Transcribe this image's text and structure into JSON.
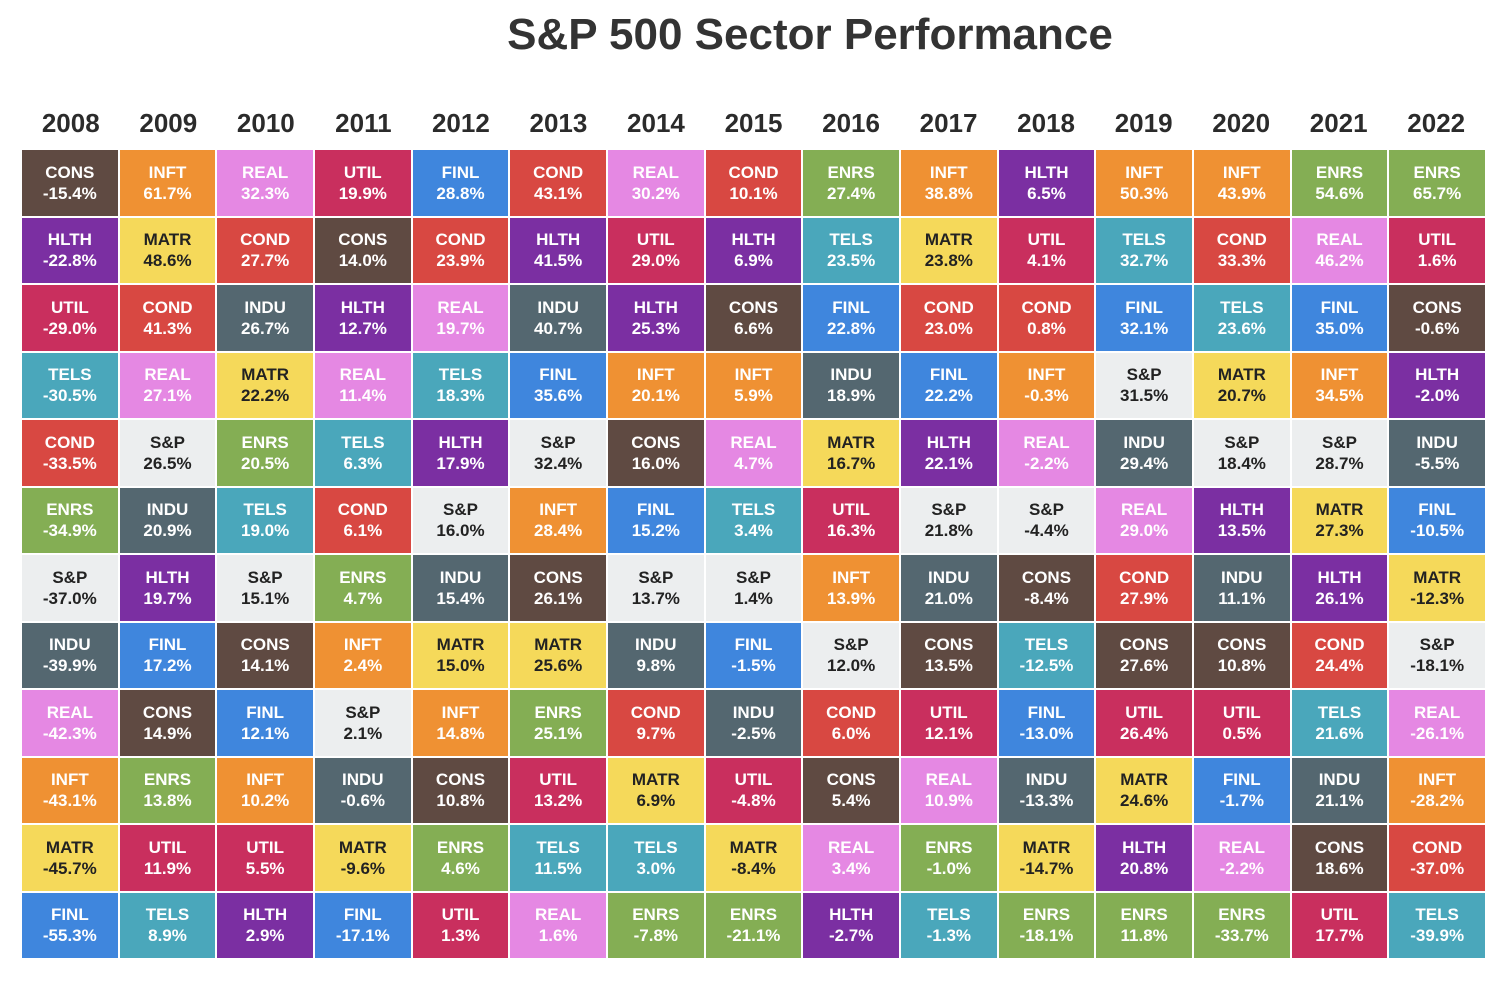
{
  "title": "S&P 500 Sector Performance",
  "colors": {
    "CONS": "#5f4a42",
    "INFT": "#ef9133",
    "REAL": "#e588e3",
    "UTIL": "#c92f5e",
    "FINL": "#3f86dd",
    "COND": "#d84842",
    "ENRS": "#84ae54",
    "HLTH": "#7b2fa2",
    "MATR": "#f5d95a",
    "INDU": "#546770",
    "TELS": "#4aa7bb",
    "S&P": "#eceeef"
  },
  "chart_data": {
    "type": "table",
    "title": "S&P 500 Sector Performance",
    "years": [
      "2008",
      "2009",
      "2010",
      "2011",
      "2012",
      "2013",
      "2014",
      "2015",
      "2016",
      "2017",
      "2018",
      "2019",
      "2020",
      "2021",
      "2022"
    ],
    "columns": [
      [
        [
          "CONS",
          "-15.4%"
        ],
        [
          "HLTH",
          "-22.8%"
        ],
        [
          "UTIL",
          "-29.0%"
        ],
        [
          "TELS",
          "-30.5%"
        ],
        [
          "COND",
          "-33.5%"
        ],
        [
          "ENRS",
          "-34.9%"
        ],
        [
          "S&P",
          "-37.0%"
        ],
        [
          "INDU",
          "-39.9%"
        ],
        [
          "REAL",
          "-42.3%"
        ],
        [
          "INFT",
          "-43.1%"
        ],
        [
          "MATR",
          "-45.7%"
        ],
        [
          "FINL",
          "-55.3%"
        ]
      ],
      [
        [
          "INFT",
          "61.7%"
        ],
        [
          "MATR",
          "48.6%"
        ],
        [
          "COND",
          "41.3%"
        ],
        [
          "REAL",
          "27.1%"
        ],
        [
          "S&P",
          "26.5%"
        ],
        [
          "INDU",
          "20.9%"
        ],
        [
          "HLTH",
          "19.7%"
        ],
        [
          "FINL",
          "17.2%"
        ],
        [
          "CONS",
          "14.9%"
        ],
        [
          "ENRS",
          "13.8%"
        ],
        [
          "UTIL",
          "11.9%"
        ],
        [
          "TELS",
          "8.9%"
        ]
      ],
      [
        [
          "REAL",
          "32.3%"
        ],
        [
          "COND",
          "27.7%"
        ],
        [
          "INDU",
          "26.7%"
        ],
        [
          "MATR",
          "22.2%"
        ],
        [
          "ENRS",
          "20.5%"
        ],
        [
          "TELS",
          "19.0%"
        ],
        [
          "S&P",
          "15.1%"
        ],
        [
          "CONS",
          "14.1%"
        ],
        [
          "FINL",
          "12.1%"
        ],
        [
          "INFT",
          "10.2%"
        ],
        [
          "UTIL",
          "5.5%"
        ],
        [
          "HLTH",
          "2.9%"
        ]
      ],
      [
        [
          "UTIL",
          "19.9%"
        ],
        [
          "CONS",
          "14.0%"
        ],
        [
          "HLTH",
          "12.7%"
        ],
        [
          "REAL",
          "11.4%"
        ],
        [
          "TELS",
          "6.3%"
        ],
        [
          "COND",
          "6.1%"
        ],
        [
          "ENRS",
          "4.7%"
        ],
        [
          "INFT",
          "2.4%"
        ],
        [
          "S&P",
          "2.1%"
        ],
        [
          "INDU",
          "-0.6%"
        ],
        [
          "MATR",
          "-9.6%"
        ],
        [
          "FINL",
          "-17.1%"
        ]
      ],
      [
        [
          "FINL",
          "28.8%"
        ],
        [
          "COND",
          "23.9%"
        ],
        [
          "REAL",
          "19.7%"
        ],
        [
          "TELS",
          "18.3%"
        ],
        [
          "HLTH",
          "17.9%"
        ],
        [
          "S&P",
          "16.0%"
        ],
        [
          "INDU",
          "15.4%"
        ],
        [
          "MATR",
          "15.0%"
        ],
        [
          "INFT",
          "14.8%"
        ],
        [
          "CONS",
          "10.8%"
        ],
        [
          "ENRS",
          "4.6%"
        ],
        [
          "UTIL",
          "1.3%"
        ]
      ],
      [
        [
          "COND",
          "43.1%"
        ],
        [
          "HLTH",
          "41.5%"
        ],
        [
          "INDU",
          "40.7%"
        ],
        [
          "FINL",
          "35.6%"
        ],
        [
          "S&P",
          "32.4%"
        ],
        [
          "INFT",
          "28.4%"
        ],
        [
          "CONS",
          "26.1%"
        ],
        [
          "MATR",
          "25.6%"
        ],
        [
          "ENRS",
          "25.1%"
        ],
        [
          "UTIL",
          "13.2%"
        ],
        [
          "TELS",
          "11.5%"
        ],
        [
          "REAL",
          "1.6%"
        ]
      ],
      [
        [
          "REAL",
          "30.2%"
        ],
        [
          "UTIL",
          "29.0%"
        ],
        [
          "HLTH",
          "25.3%"
        ],
        [
          "INFT",
          "20.1%"
        ],
        [
          "CONS",
          "16.0%"
        ],
        [
          "FINL",
          "15.2%"
        ],
        [
          "S&P",
          "13.7%"
        ],
        [
          "INDU",
          "9.8%"
        ],
        [
          "COND",
          "9.7%"
        ],
        [
          "MATR",
          "6.9%"
        ],
        [
          "TELS",
          "3.0%"
        ],
        [
          "ENRS",
          "-7.8%"
        ]
      ],
      [
        [
          "COND",
          "10.1%"
        ],
        [
          "HLTH",
          "6.9%"
        ],
        [
          "CONS",
          "6.6%"
        ],
        [
          "INFT",
          "5.9%"
        ],
        [
          "REAL",
          "4.7%"
        ],
        [
          "TELS",
          "3.4%"
        ],
        [
          "S&P",
          "1.4%"
        ],
        [
          "FINL",
          "-1.5%"
        ],
        [
          "INDU",
          "-2.5%"
        ],
        [
          "UTIL",
          "-4.8%"
        ],
        [
          "MATR",
          "-8.4%"
        ],
        [
          "ENRS",
          "-21.1%"
        ]
      ],
      [
        [
          "ENRS",
          "27.4%"
        ],
        [
          "TELS",
          "23.5%"
        ],
        [
          "FINL",
          "22.8%"
        ],
        [
          "INDU",
          "18.9%"
        ],
        [
          "MATR",
          "16.7%"
        ],
        [
          "UTIL",
          "16.3%"
        ],
        [
          "INFT",
          "13.9%"
        ],
        [
          "S&P",
          "12.0%"
        ],
        [
          "COND",
          "6.0%"
        ],
        [
          "CONS",
          "5.4%"
        ],
        [
          "REAL",
          "3.4%"
        ],
        [
          "HLTH",
          "-2.7%"
        ]
      ],
      [
        [
          "INFT",
          "38.8%"
        ],
        [
          "MATR",
          "23.8%"
        ],
        [
          "COND",
          "23.0%"
        ],
        [
          "FINL",
          "22.2%"
        ],
        [
          "HLTH",
          "22.1%"
        ],
        [
          "S&P",
          "21.8%"
        ],
        [
          "INDU",
          "21.0%"
        ],
        [
          "CONS",
          "13.5%"
        ],
        [
          "UTIL",
          "12.1%"
        ],
        [
          "REAL",
          "10.9%"
        ],
        [
          "ENRS",
          "-1.0%"
        ],
        [
          "TELS",
          "-1.3%"
        ]
      ],
      [
        [
          "HLTH",
          "6.5%"
        ],
        [
          "UTIL",
          "4.1%"
        ],
        [
          "COND",
          "0.8%"
        ],
        [
          "INFT",
          "-0.3%"
        ],
        [
          "REAL",
          "-2.2%"
        ],
        [
          "S&P",
          "-4.4%"
        ],
        [
          "CONS",
          "-8.4%"
        ],
        [
          "TELS",
          "-12.5%"
        ],
        [
          "FINL",
          "-13.0%"
        ],
        [
          "INDU",
          "-13.3%"
        ],
        [
          "MATR",
          "-14.7%"
        ],
        [
          "ENRS",
          "-18.1%"
        ]
      ],
      [
        [
          "INFT",
          "50.3%"
        ],
        [
          "TELS",
          "32.7%"
        ],
        [
          "FINL",
          "32.1%"
        ],
        [
          "S&P",
          "31.5%"
        ],
        [
          "INDU",
          "29.4%"
        ],
        [
          "REAL",
          "29.0%"
        ],
        [
          "COND",
          "27.9%"
        ],
        [
          "CONS",
          "27.6%"
        ],
        [
          "UTIL",
          "26.4%"
        ],
        [
          "MATR",
          "24.6%"
        ],
        [
          "HLTH",
          "20.8%"
        ],
        [
          "ENRS",
          "11.8%"
        ]
      ],
      [
        [
          "INFT",
          "43.9%"
        ],
        [
          "COND",
          "33.3%"
        ],
        [
          "TELS",
          "23.6%"
        ],
        [
          "MATR",
          "20.7%"
        ],
        [
          "S&P",
          "18.4%"
        ],
        [
          "HLTH",
          "13.5%"
        ],
        [
          "INDU",
          "11.1%"
        ],
        [
          "CONS",
          "10.8%"
        ],
        [
          "UTIL",
          "0.5%"
        ],
        [
          "FINL",
          "-1.7%"
        ],
        [
          "REAL",
          "-2.2%"
        ],
        [
          "ENRS",
          "-33.7%"
        ]
      ],
      [
        [
          "ENRS",
          "54.6%"
        ],
        [
          "REAL",
          "46.2%"
        ],
        [
          "FINL",
          "35.0%"
        ],
        [
          "INFT",
          "34.5%"
        ],
        [
          "S&P",
          "28.7%"
        ],
        [
          "MATR",
          "27.3%"
        ],
        [
          "HLTH",
          "26.1%"
        ],
        [
          "COND",
          "24.4%"
        ],
        [
          "TELS",
          "21.6%"
        ],
        [
          "INDU",
          "21.1%"
        ],
        [
          "CONS",
          "18.6%"
        ],
        [
          "UTIL",
          "17.7%"
        ]
      ],
      [
        [
          "ENRS",
          "65.7%"
        ],
        [
          "UTIL",
          "1.6%"
        ],
        [
          "CONS",
          "-0.6%"
        ],
        [
          "HLTH",
          "-2.0%"
        ],
        [
          "INDU",
          "-5.5%"
        ],
        [
          "FINL",
          "-10.5%"
        ],
        [
          "MATR",
          "-12.3%"
        ],
        [
          "S&P",
          "-18.1%"
        ],
        [
          "REAL",
          "-26.1%"
        ],
        [
          "INFT",
          "-28.2%"
        ],
        [
          "COND",
          "-37.0%"
        ],
        [
          "TELS",
          "-39.9%"
        ]
      ]
    ]
  }
}
